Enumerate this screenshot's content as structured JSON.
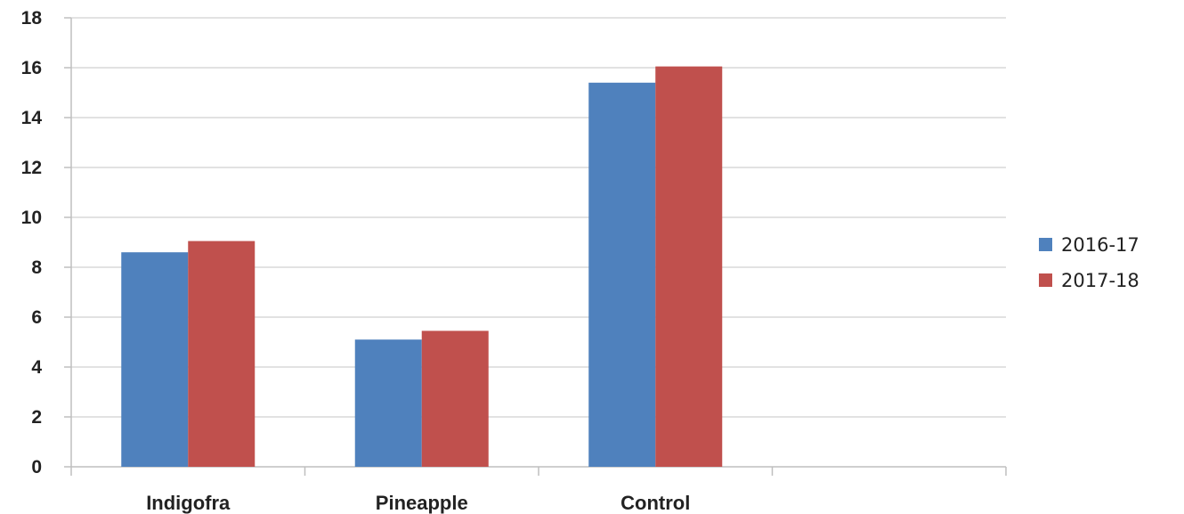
{
  "chart_data": {
    "type": "bar",
    "categories": [
      "Indigofra",
      "Pineapple",
      "Control",
      ""
    ],
    "series": [
      {
        "name": "2016-17",
        "values": [
          8.6,
          5.1,
          15.4,
          null
        ],
        "color": "#4F81BD"
      },
      {
        "name": "2017-18",
        "values": [
          9.05,
          5.45,
          16.05,
          null
        ],
        "color": "#C0504D"
      }
    ],
    "yticks": [
      "0",
      "2",
      "4",
      "6",
      "8",
      "10",
      "12",
      "14",
      "16",
      "18"
    ],
    "ylim": [
      0,
      18
    ],
    "grid": true,
    "legend": "right"
  }
}
